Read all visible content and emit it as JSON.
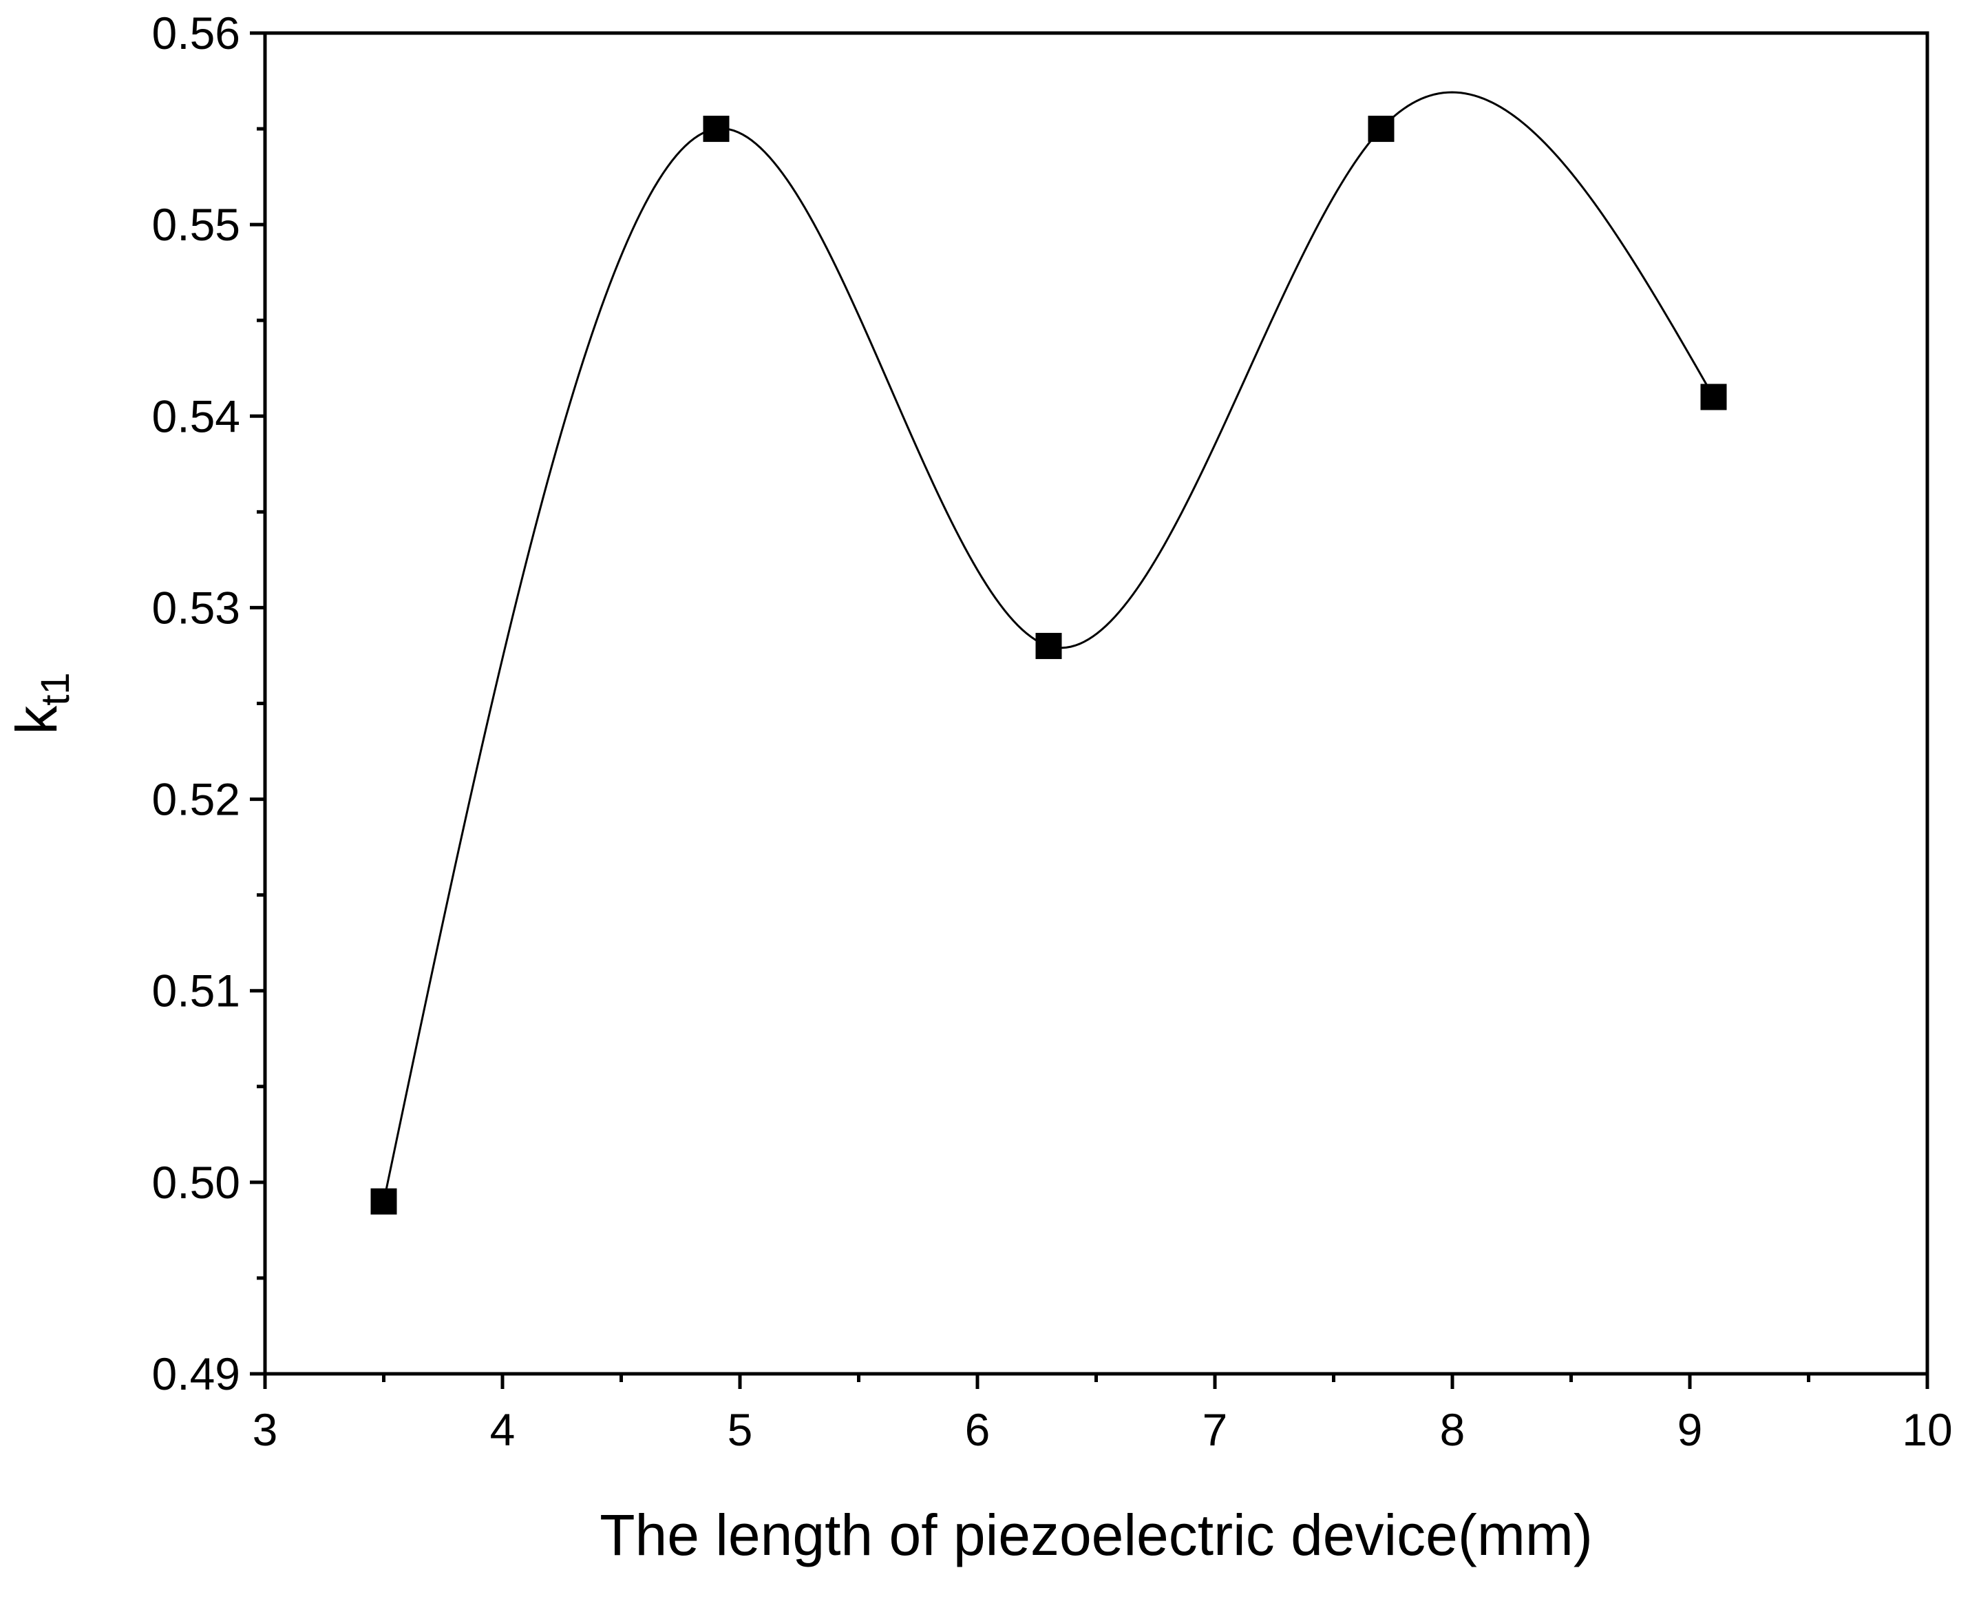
{
  "chart_data": {
    "type": "line",
    "title": "",
    "xlabel": "The length of piezoelectric device(mm)",
    "ylabel": {
      "main": "k",
      "subscript": "t1"
    },
    "xlim": [
      3,
      10
    ],
    "ylim": [
      0.49,
      0.56
    ],
    "x_ticks": [
      3,
      4,
      5,
      6,
      7,
      8,
      9,
      10
    ],
    "x_tick_labels": [
      "3",
      "4",
      "5",
      "6",
      "7",
      "8",
      "9",
      "10"
    ],
    "y_ticks": [
      0.49,
      0.5,
      0.51,
      0.52,
      0.53,
      0.54,
      0.55,
      0.56
    ],
    "y_tick_labels": [
      "0.49",
      "0.50",
      "0.51",
      "0.52",
      "0.53",
      "0.54",
      "0.55",
      "0.56"
    ],
    "grid": false,
    "legend": "none",
    "series": [
      {
        "x": [
          3.5,
          4.9,
          6.3,
          7.7,
          9.1
        ],
        "y": [
          0.499,
          0.555,
          0.528,
          0.555,
          0.541
        ],
        "marker": "square",
        "line": "smooth-spline",
        "color": "#000000"
      }
    ]
  }
}
